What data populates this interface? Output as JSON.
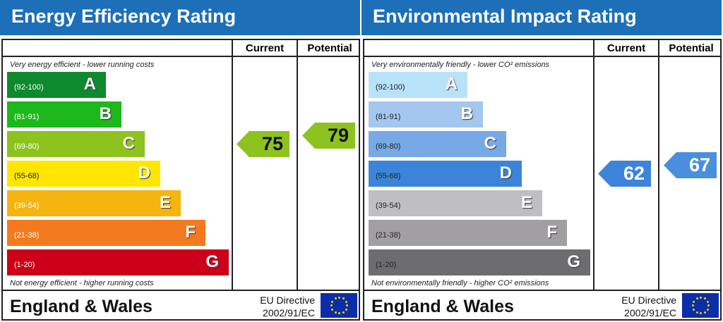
{
  "panels": [
    {
      "title": "Energy Efficiency Rating",
      "current_label": "Current",
      "potential_label": "Potential",
      "top_note": "Very energy efficient - lower running costs",
      "bottom_note": "Not energy efficient - higher running costs",
      "bands": [
        {
          "range": "(92-100)",
          "letter": "A",
          "color": "#0e8a2e"
        },
        {
          "range": "(81-91)",
          "letter": "B",
          "color": "#1cb81c"
        },
        {
          "range": "(69-80)",
          "letter": "C",
          "color": "#8dc21f"
        },
        {
          "range": "(55-68)",
          "letter": "D",
          "color": "#ffe600"
        },
        {
          "range": "(39-54)",
          "letter": "E",
          "color": "#f5b40f"
        },
        {
          "range": "(21-38)",
          "letter": "F",
          "color": "#f47a1f"
        },
        {
          "range": "(1-20)",
          "letter": "G",
          "color": "#cc0018"
        }
      ],
      "current": {
        "value": "75",
        "band": "C",
        "color": "#8dc21f"
      },
      "potential": {
        "value": "79",
        "band": "C",
        "color": "#8dc21f"
      },
      "region": "England & Wales",
      "directive_line1": "EU Directive",
      "directive_line2": "2002/91/EC"
    },
    {
      "title": "Environmental Impact Rating",
      "current_label": "Current",
      "potential_label": "Potential",
      "top_note": "Very environmentally friendly - lower CO² emissions",
      "bottom_note": "Not environmentally friendly - higher CO² emissions",
      "bands": [
        {
          "range": "(92-100)",
          "letter": "A",
          "color": "#b8e2f8"
        },
        {
          "range": "(81-91)",
          "letter": "B",
          "color": "#a3c7ee"
        },
        {
          "range": "(69-80)",
          "letter": "C",
          "color": "#78a9e5"
        },
        {
          "range": "(55-68)",
          "letter": "D",
          "color": "#3c84d9"
        },
        {
          "range": "(39-54)",
          "letter": "E",
          "color": "#bfbfc1"
        },
        {
          "range": "(21-38)",
          "letter": "F",
          "color": "#a19fa2"
        },
        {
          "range": "(1-20)",
          "letter": "G",
          "color": "#6d6c6e"
        }
      ],
      "current": {
        "value": "62",
        "band": "D",
        "color": "#3c84d9"
      },
      "potential": {
        "value": "67",
        "band": "D",
        "color": "#4a8fde"
      },
      "region": "England & Wales",
      "directive_line1": "EU Directive",
      "directive_line2": "2002/91/EC"
    }
  ]
}
